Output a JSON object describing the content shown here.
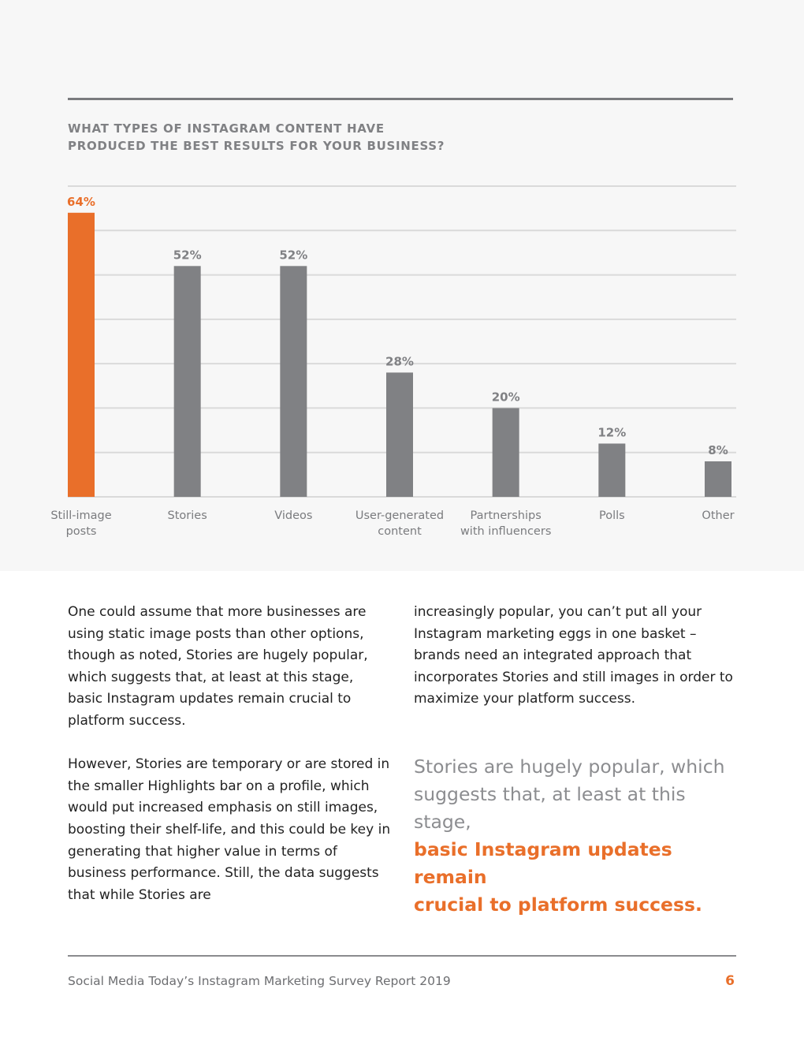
{
  "colors": {
    "accent": "#E96F2A",
    "bar": "#808184",
    "grid": "#DADADA",
    "panel": "#F7F7F7"
  },
  "chart_title": {
    "line1": "WHAT TYPES OF INSTAGRAM CONTENT HAVE",
    "line2": "PRODUCED THE BEST RESULTS FOR YOUR BUSINESS?"
  },
  "chart_data": {
    "type": "bar",
    "title": "WHAT TYPES OF INSTAGRAM CONTENT HAVE PRODUCED THE BEST RESULTS FOR YOUR BUSINESS?",
    "categories": [
      [
        "Still-image",
        "posts"
      ],
      [
        "Stories"
      ],
      [
        "Videos"
      ],
      [
        "User-generated",
        "content"
      ],
      [
        "Partnerships",
        "with influencers"
      ],
      [
        "Polls"
      ],
      [
        "Other"
      ]
    ],
    "values": [
      64,
      52,
      52,
      28,
      20,
      12,
      8
    ],
    "labels": [
      "64%",
      "52%",
      "52%",
      "28%",
      "20%",
      "12%",
      "8%"
    ],
    "highlight_index": 0,
    "ylim": [
      0,
      70
    ],
    "grid": true,
    "xlabel": "",
    "ylabel": ""
  },
  "body": {
    "left_p1": "One could assume that more businesses are using static image posts than other options, though as noted, Stories are hugely popular, which suggests that, at least at this stage, basic Instagram updates remain crucial to platform success.",
    "left_p2": "However, Stories are temporary or are stored in the smaller Highlights bar on a profile, which would put increased emphasis on still images, boosting their shelf-life, and this could be key in generating that higher value in terms of business performance. Still, the data suggests that while Stories are",
    "right_p1": "increasingly popular, you can’t put all your Instagram marketing eggs in one basket – brands need an integrated approach that incorporates Stories and still images in order to maximize your platform success."
  },
  "pull_quote": {
    "line1": "Stories are hugely popular, which",
    "line2": "suggests that, at least at this stage,",
    "highlight1": "basic Instagram updates remain",
    "highlight2": "crucial to platform success."
  },
  "footer": {
    "text": "Social Media Today’s Instagram Marketing Survey Report 2019",
    "page_number": "6"
  }
}
